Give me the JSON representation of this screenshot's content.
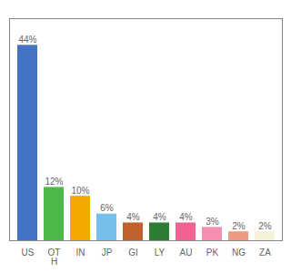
{
  "chart_data": {
    "type": "bar",
    "categories": [
      "US",
      "OT\nH",
      "IN",
      "JP",
      "GI",
      "LY",
      "AU",
      "PK",
      "NG",
      "ZA"
    ],
    "values": [
      44,
      12,
      10,
      6,
      4,
      4,
      4,
      3,
      2,
      2
    ],
    "value_labels": [
      "44%",
      "12%",
      "10%",
      "6%",
      "4%",
      "4%",
      "4%",
      "3%",
      "2%",
      "2%"
    ],
    "colors": [
      "#4472c4",
      "#4db848",
      "#f5a800",
      "#74c0e8",
      "#c0622e",
      "#2e7d32",
      "#f06292",
      "#f48fb1",
      "#ef9a80",
      "#f5f0d8"
    ],
    "ylim": [
      0,
      50
    ],
    "grid": false,
    "data_labels": true,
    "tick_labels": "x"
  }
}
